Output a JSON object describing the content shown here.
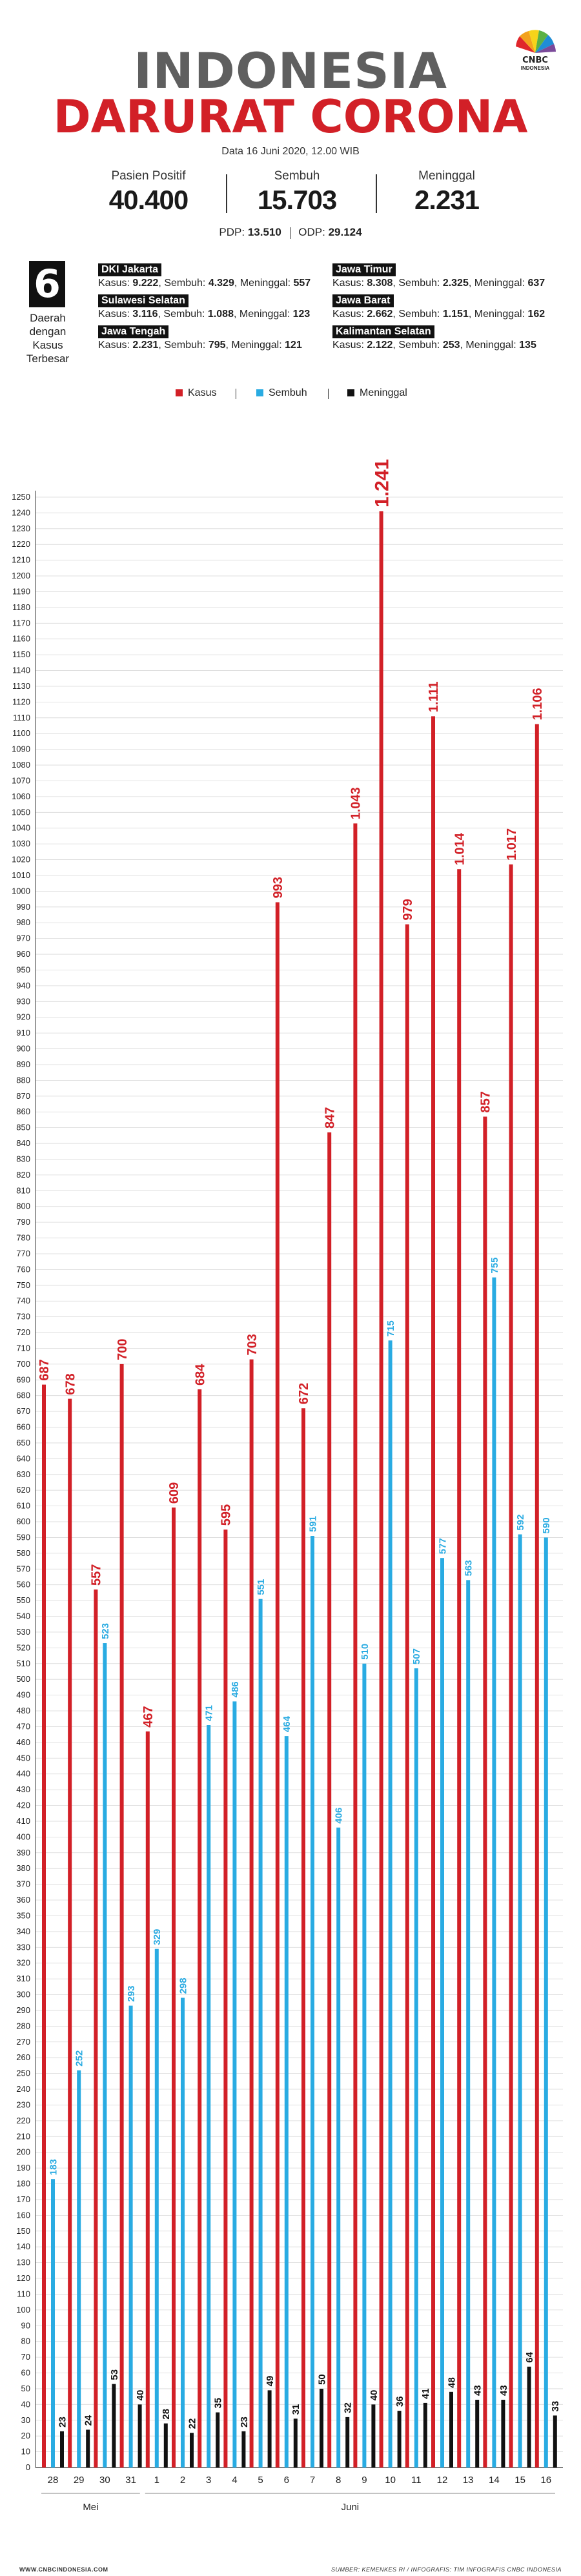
{
  "header": {
    "title_line1": "INDONESIA",
    "title_line2": "DARURAT CORONA",
    "date": "Data 16 Juni 2020, 12.00 WIB",
    "logo_text": "CNBC",
    "logo_subtext": "INDONESIA"
  },
  "stats": [
    {
      "label": "Pasien Positif",
      "value": "40.400"
    },
    {
      "label": "Sembuh",
      "value": "15.703"
    },
    {
      "label": "Meninggal",
      "value": "2.231"
    }
  ],
  "pdp": {
    "pdp_label": "PDP:",
    "pdp_value": "13.510",
    "odp_label": "ODP:",
    "odp_value": "29.124"
  },
  "regions": {
    "count": "6",
    "caption": [
      "Daerah",
      "dengan",
      "Kasus",
      "Terbesar"
    ],
    "items": [
      {
        "name": "DKI Jakarta",
        "kasus": "9.222",
        "sembuh": "4.329",
        "meninggal": "557"
      },
      {
        "name": "Sulawesi Selatan",
        "kasus": "3.116",
        "sembuh": "1.088",
        "meninggal": "123"
      },
      {
        "name": "Jawa Tengah",
        "kasus": "2.231",
        "sembuh": "795",
        "meninggal": "121"
      },
      {
        "name": "Jawa Timur",
        "kasus": "8.308",
        "sembuh": "2.325",
        "meninggal": "637"
      },
      {
        "name": "Jawa Barat",
        "kasus": "2.662",
        "sembuh": "1.151",
        "meninggal": "162"
      },
      {
        "name": "Kalimantan Selatan",
        "kasus": "2.122",
        "sembuh": "253",
        "meninggal": "135"
      }
    ],
    "kasus_label": "Kasus:",
    "sembuh_label": "Sembuh:",
    "meninggal_label": "Meninggal:"
  },
  "chart_data": {
    "type": "bar",
    "categories": [
      "28",
      "29",
      "30",
      "31",
      "1",
      "2",
      "3",
      "4",
      "5",
      "6",
      "7",
      "8",
      "9",
      "10",
      "11",
      "12",
      "13",
      "14",
      "15",
      "16"
    ],
    "months": [
      {
        "label": "Mei",
        "from": 0,
        "to": 3
      },
      {
        "label": "Juni",
        "from": 4,
        "to": 19
      }
    ],
    "series": [
      {
        "name": "Kasus",
        "color": "#d22027",
        "values": [
          687,
          678,
          557,
          700,
          467,
          609,
          684,
          595,
          703,
          993,
          672,
          847,
          1043,
          1241,
          979,
          1111,
          1014,
          857,
          1017,
          1106
        ],
        "labels": [
          "687",
          "678",
          "557",
          "700",
          "467",
          "609",
          "684",
          "595",
          "703",
          "993",
          "672",
          "847",
          "1.043",
          "1.241",
          "979",
          "1.111",
          "1.014",
          "857",
          "1.017",
          "1.106"
        ]
      },
      {
        "name": "Sembuh",
        "color": "#29abe2",
        "values": [
          183,
          252,
          523,
          293,
          329,
          298,
          471,
          486,
          551,
          464,
          591,
          406,
          510,
          715,
          507,
          577,
          563,
          755,
          592,
          590
        ],
        "labels": [
          "183",
          "252",
          "523",
          "293",
          "329",
          "298",
          "471",
          "486",
          "551",
          "464",
          "591",
          "406",
          "510",
          "715",
          "507",
          "577",
          "563",
          "755",
          "592",
          "590"
        ]
      },
      {
        "name": "Meninggal",
        "color": "#111111",
        "values": [
          23,
          24,
          53,
          40,
          28,
          22,
          35,
          23,
          49,
          31,
          50,
          32,
          40,
          36,
          41,
          48,
          43,
          43,
          64,
          33
        ],
        "labels": [
          "23",
          "24",
          "53",
          "40",
          "28",
          "22",
          "35",
          "23",
          "49",
          "31",
          "50",
          "32",
          "40",
          "36",
          "41",
          "48",
          "43",
          "43",
          "64",
          "33"
        ]
      }
    ],
    "ylim": [
      0,
      1250
    ],
    "ytick_step": 10,
    "grid": true,
    "legend": "top-center"
  },
  "footer": {
    "left": "WWW.CNBCINDONESIA.COM",
    "right": "SUMBER: KEMENKES RI / INFOGRAFIS: TIM INFOGRAFIS CNBC INDONESIA"
  }
}
